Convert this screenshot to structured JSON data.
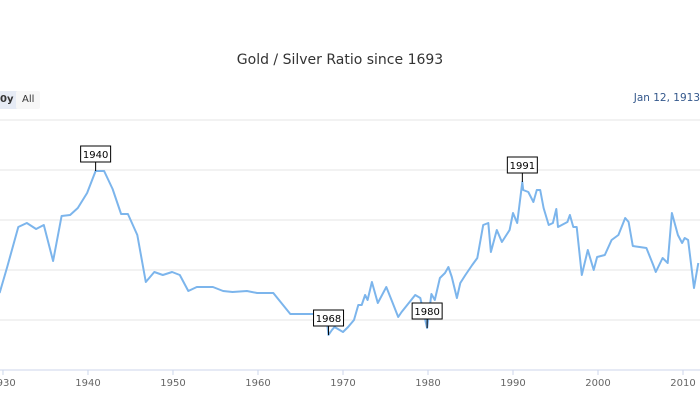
{
  "chart_data": {
    "type": "line",
    "title": "Gold / Silver Ratio since 1693",
    "xlabel": "",
    "ylabel": "",
    "xlim": [
      1929.65,
      2012
    ],
    "ylim": [
      0,
      125
    ],
    "grid": true,
    "color": "#7cb5ec",
    "x_ticks": [
      1930,
      1940,
      1950,
      1960,
      1970,
      1980,
      1990,
      2000,
      2010
    ],
    "y_gridlines": [
      25,
      50,
      75,
      100,
      125
    ],
    "series": [
      {
        "name": "Gold / Silver Ratio",
        "x": [
          1929.6,
          1930.5,
          1931.8,
          1932.8,
          1933.9,
          1934.8,
          1935.9,
          1936.9,
          1937.9,
          1938.8,
          1939.9,
          1940.9,
          1941.9,
          1942.9,
          1943.9,
          1944.7,
          1945.8,
          1946.8,
          1947.8,
          1948.8,
          1949.9,
          1950.8,
          1951.8,
          1952.8,
          1954.7,
          1955.9,
          1957.0,
          1958.7,
          1959.9,
          1961.8,
          1963.8,
          1966.5,
          1968.1,
          1968.3,
          1968.7,
          1969.0,
          1970.0,
          1970.6,
          1971.3,
          1971.8,
          1972.2,
          1972.6,
          1972.9,
          1973.4,
          1974.1,
          1975.1,
          1975.8,
          1976.5,
          1976.9,
          1978.5,
          1979.1,
          1979.9,
          1980.4,
          1980.8,
          1981.4,
          1982.0,
          1982.4,
          1982.8,
          1983.4,
          1983.8,
          1984.4,
          1985.2,
          1985.8,
          1986.5,
          1987.1,
          1987.4,
          1988.1,
          1988.7,
          1989.6,
          1990.0,
          1990.5,
          1991.1,
          1991.2,
          1991.8,
          1992.4,
          1992.8,
          1993.2,
          1993.6,
          1994.2,
          1994.7,
          1995.1,
          1995.3,
          1996.4,
          1996.7,
          1997.1,
          1997.5,
          1998.1,
          1998.8,
          1999.5,
          1999.9,
          2000.8,
          2001.6,
          2002.4,
          2003.2,
          2003.6,
          2004.1,
          2004.9,
          2005.7,
          2006.5,
          2006.8,
          2007.6,
          2008.2,
          2008.7,
          2009.4,
          2009.9,
          2010.2,
          2010.6,
          2011.3,
          2011.8
        ],
        "y": [
          38.5,
          51.5,
          71.5,
          73.5,
          70.5,
          72.5,
          54.5,
          77,
          77.5,
          81,
          88.5,
          99.5,
          99.5,
          90.5,
          78,
          78,
          67.5,
          44,
          49,
          47.5,
          49,
          47.5,
          39.5,
          41.5,
          41.5,
          39.5,
          39,
          39.5,
          38.5,
          38.5,
          28,
          28,
          25,
          17.5,
          20,
          21.5,
          19,
          21.5,
          25,
          32.5,
          32.5,
          37.5,
          35,
          44,
          33.5,
          41.5,
          34,
          26.5,
          29,
          37.5,
          36,
          21,
          38,
          35,
          46,
          48.5,
          51.5,
          46.5,
          36,
          43.5,
          47.5,
          52.5,
          56,
          72.5,
          73.5,
          59,
          70,
          64,
          70,
          78.5,
          73.5,
          94,
          90,
          89,
          84,
          90,
          90,
          81,
          72.5,
          73.5,
          80.5,
          71.5,
          74,
          77.5,
          71.5,
          71.5,
          47.5,
          60,
          50,
          56.5,
          57.5,
          65,
          67.5,
          76,
          74,
          62,
          61.5,
          61,
          52.5,
          49,
          56,
          53.5,
          78.5,
          67.5,
          63.5,
          66,
          65,
          41,
          53.5
        ]
      }
    ],
    "flags": [
      {
        "x": 1940.9,
        "y": 99.5,
        "text": "1940"
      },
      {
        "x": 1968.3,
        "y": 17.5,
        "text": "1968"
      },
      {
        "x": 1979.9,
        "y": 21,
        "text": "1980"
      },
      {
        "x": 1991.1,
        "y": 94,
        "text": "1991"
      }
    ]
  },
  "range_selector": {
    "buttons": [
      {
        "label": "0y",
        "selected": true
      },
      {
        "label": "All",
        "selected": false
      }
    ]
  },
  "date_range": {
    "from": "Jan 12, 1913"
  }
}
